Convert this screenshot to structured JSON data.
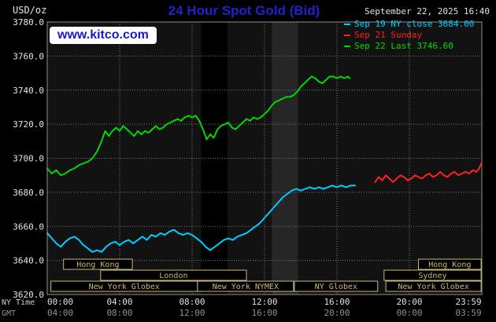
{
  "header": {
    "units": "USD/oz",
    "title": "24 Hour Spot Gold (Bid)",
    "datetime": "September 22, 2025 16:40",
    "watermark": "www.kitco.com"
  },
  "legend": {
    "items": [
      {
        "key": "sep19",
        "label": "Sep 19 NY close 3684.00",
        "color": "#00ccff"
      },
      {
        "key": "sep21",
        "label": "Sep 21 Sunday",
        "color": "#ff2020"
      },
      {
        "key": "sep22",
        "label": "Sep 22 Last 3746.60",
        "color": "#00d800"
      }
    ]
  },
  "axes": {
    "y_ticks": [
      "3780.0",
      "3760.0",
      "3740.0",
      "3720.0",
      "3700.0",
      "3680.0",
      "3660.0",
      "3640.0",
      "3620.0"
    ],
    "tick_hours": [
      0,
      4,
      8,
      12,
      16,
      20,
      23.983
    ],
    "ny_time_label": "NY Time",
    "gmt_label": "GMT",
    "ny_ticks": [
      "00:00",
      "04:00",
      "08:00",
      "12:00",
      "16:00",
      "20:00",
      "23:59"
    ],
    "gmt_ticks": [
      "04:00",
      "08:00",
      "12:00",
      "16:00",
      "20:00",
      "00:00",
      "03:59"
    ]
  },
  "sessions": [
    {
      "label": "Hong Kong",
      "row": 0,
      "from": 0.9,
      "to": 4.7
    },
    {
      "label": "Hong Kong",
      "row": 0,
      "from": 20.5,
      "to": 23.96
    },
    {
      "label": "London",
      "row": 1,
      "from": 2.95,
      "to": 11.0
    },
    {
      "label": "Sydney",
      "row": 1,
      "from": 18.6,
      "to": 23.96
    },
    {
      "label": "New York Globex",
      "row": 2,
      "from": 0.2,
      "to": 8.3
    },
    {
      "label": "New York NYMEX",
      "row": 2,
      "from": 8.3,
      "to": 13.6
    },
    {
      "label": "NY Globex",
      "row": 2,
      "from": 13.65,
      "to": 18.25
    },
    {
      "label": "New York Globex",
      "row": 2,
      "from": 18.7,
      "to": 23.96
    }
  ],
  "chart_data": {
    "type": "line",
    "title": "24 Hour Spot Gold (Bid)",
    "x_unit": "hours, NY time",
    "y_unit": "USD/oz",
    "xlim": [
      0,
      24
    ],
    "ylim": [
      3620,
      3780
    ],
    "grid": true,
    "legend_position": "top-right",
    "colors": {
      "page_bg": "#000000",
      "plot_bg": "#121212",
      "grid": "#7a7a7a",
      "border": "#8f8f8f",
      "session_box": "#c9b878",
      "tick_text": "#e0e0e0",
      "gmt_text": "#909090"
    },
    "bands": [
      {
        "from": 8.5,
        "to": 9.95,
        "color": "#000000"
      },
      {
        "from": 12.4,
        "to": 13.85,
        "color": "#262626"
      }
    ],
    "series": [
      {
        "key": "sep19",
        "name": "Sep 19 NY close 3684.00",
        "color": "#00ccff",
        "points": [
          [
            0,
            3656
          ],
          [
            0.25,
            3653
          ],
          [
            0.5,
            3650
          ],
          [
            0.75,
            3648
          ],
          [
            1,
            3651
          ],
          [
            1.25,
            3653
          ],
          [
            1.5,
            3654
          ],
          [
            1.75,
            3652
          ],
          [
            2,
            3649
          ],
          [
            2.25,
            3647
          ],
          [
            2.5,
            3645
          ],
          [
            2.75,
            3646
          ],
          [
            3,
            3645
          ],
          [
            3.25,
            3648
          ],
          [
            3.5,
            3650
          ],
          [
            3.75,
            3651
          ],
          [
            4,
            3649
          ],
          [
            4.25,
            3651
          ],
          [
            4.5,
            3652
          ],
          [
            4.75,
            3650
          ],
          [
            5,
            3652
          ],
          [
            5.25,
            3654
          ],
          [
            5.5,
            3652
          ],
          [
            5.75,
            3655
          ],
          [
            6,
            3654
          ],
          [
            6.25,
            3656
          ],
          [
            6.5,
            3655
          ],
          [
            6.75,
            3657
          ],
          [
            7,
            3658
          ],
          [
            7.25,
            3656
          ],
          [
            7.5,
            3655
          ],
          [
            7.75,
            3656
          ],
          [
            8,
            3655
          ],
          [
            8.25,
            3653
          ],
          [
            8.5,
            3651
          ],
          [
            8.75,
            3648
          ],
          [
            9,
            3646
          ],
          [
            9.25,
            3648
          ],
          [
            9.5,
            3650
          ],
          [
            9.75,
            3652
          ],
          [
            10,
            3653
          ],
          [
            10.25,
            3652
          ],
          [
            10.5,
            3654
          ],
          [
            10.75,
            3655
          ],
          [
            11,
            3656
          ],
          [
            11.25,
            3658
          ],
          [
            11.5,
            3660
          ],
          [
            11.75,
            3662
          ],
          [
            12,
            3665
          ],
          [
            12.25,
            3668
          ],
          [
            12.5,
            3671
          ],
          [
            12.75,
            3674
          ],
          [
            13,
            3677
          ],
          [
            13.25,
            3679
          ],
          [
            13.5,
            3681
          ],
          [
            13.75,
            3682
          ],
          [
            14,
            3681
          ],
          [
            14.25,
            3682
          ],
          [
            14.5,
            3683
          ],
          [
            14.75,
            3682
          ],
          [
            15,
            3683
          ],
          [
            15.25,
            3682
          ],
          [
            15.5,
            3683
          ],
          [
            15.75,
            3684
          ],
          [
            16,
            3683
          ],
          [
            16.25,
            3684
          ],
          [
            16.5,
            3683
          ],
          [
            16.75,
            3684
          ],
          [
            17,
            3684
          ]
        ]
      },
      {
        "key": "sep21",
        "name": "Sep 21 Sunday",
        "color": "#ff2020",
        "points": [
          [
            18.1,
            3686
          ],
          [
            18.3,
            3689
          ],
          [
            18.5,
            3687
          ],
          [
            18.7,
            3690
          ],
          [
            18.9,
            3688
          ],
          [
            19.1,
            3686
          ],
          [
            19.3,
            3688
          ],
          [
            19.5,
            3690
          ],
          [
            19.7,
            3689
          ],
          [
            19.9,
            3687
          ],
          [
            20.1,
            3688
          ],
          [
            20.3,
            3690
          ],
          [
            20.5,
            3689
          ],
          [
            20.7,
            3688
          ],
          [
            20.9,
            3690
          ],
          [
            21.1,
            3691
          ],
          [
            21.3,
            3689
          ],
          [
            21.5,
            3690
          ],
          [
            21.7,
            3692
          ],
          [
            21.9,
            3690
          ],
          [
            22.1,
            3689
          ],
          [
            22.3,
            3691
          ],
          [
            22.5,
            3692
          ],
          [
            22.7,
            3690
          ],
          [
            22.9,
            3691
          ],
          [
            23.1,
            3692
          ],
          [
            23.3,
            3691
          ],
          [
            23.5,
            3693
          ],
          [
            23.7,
            3692
          ],
          [
            23.85,
            3694
          ],
          [
            23.97,
            3697
          ]
        ]
      },
      {
        "key": "sep22",
        "name": "Sep 22 Last 3746.60",
        "color": "#00d800",
        "points": [
          [
            0,
            3694
          ],
          [
            0.25,
            3691
          ],
          [
            0.5,
            3693
          ],
          [
            0.75,
            3690
          ],
          [
            1,
            3691
          ],
          [
            1.25,
            3693
          ],
          [
            1.5,
            3694
          ],
          [
            1.75,
            3696
          ],
          [
            2,
            3697
          ],
          [
            2.25,
            3698
          ],
          [
            2.5,
            3700
          ],
          [
            2.75,
            3704
          ],
          [
            3,
            3710
          ],
          [
            3.2,
            3716
          ],
          [
            3.4,
            3713
          ],
          [
            3.6,
            3716
          ],
          [
            3.8,
            3718
          ],
          [
            4,
            3716
          ],
          [
            4.2,
            3719
          ],
          [
            4.4,
            3717
          ],
          [
            4.6,
            3715
          ],
          [
            4.8,
            3713
          ],
          [
            5,
            3716
          ],
          [
            5.2,
            3714
          ],
          [
            5.4,
            3716
          ],
          [
            5.6,
            3715
          ],
          [
            5.8,
            3717
          ],
          [
            6,
            3719
          ],
          [
            6.2,
            3717
          ],
          [
            6.4,
            3718
          ],
          [
            6.6,
            3720
          ],
          [
            6.8,
            3721
          ],
          [
            7,
            3722
          ],
          [
            7.2,
            3723
          ],
          [
            7.4,
            3722
          ],
          [
            7.6,
            3724
          ],
          [
            7.8,
            3725
          ],
          [
            8,
            3724
          ],
          [
            8.2,
            3725
          ],
          [
            8.4,
            3722
          ],
          [
            8.6,
            3717
          ],
          [
            8.8,
            3711
          ],
          [
            9,
            3714
          ],
          [
            9.2,
            3712
          ],
          [
            9.4,
            3717
          ],
          [
            9.6,
            3719
          ],
          [
            9.8,
            3720
          ],
          [
            10,
            3721
          ],
          [
            10.2,
            3718
          ],
          [
            10.4,
            3717
          ],
          [
            10.6,
            3719
          ],
          [
            10.8,
            3721
          ],
          [
            11,
            3723
          ],
          [
            11.2,
            3722
          ],
          [
            11.4,
            3724
          ],
          [
            11.6,
            3723
          ],
          [
            11.8,
            3724
          ],
          [
            12,
            3726
          ],
          [
            12.2,
            3728
          ],
          [
            12.4,
            3731
          ],
          [
            12.6,
            3733
          ],
          [
            12.8,
            3734
          ],
          [
            13,
            3735
          ],
          [
            13.2,
            3736
          ],
          [
            13.4,
            3736
          ],
          [
            13.6,
            3737
          ],
          [
            13.8,
            3739
          ],
          [
            14,
            3742
          ],
          [
            14.2,
            3744
          ],
          [
            14.4,
            3746
          ],
          [
            14.6,
            3748
          ],
          [
            14.8,
            3747
          ],
          [
            15,
            3745
          ],
          [
            15.2,
            3744
          ],
          [
            15.4,
            3746
          ],
          [
            15.6,
            3748
          ],
          [
            15.8,
            3748
          ],
          [
            16,
            3747
          ],
          [
            16.2,
            3748
          ],
          [
            16.4,
            3747
          ],
          [
            16.6,
            3748
          ],
          [
            16.7,
            3747
          ]
        ]
      }
    ]
  }
}
